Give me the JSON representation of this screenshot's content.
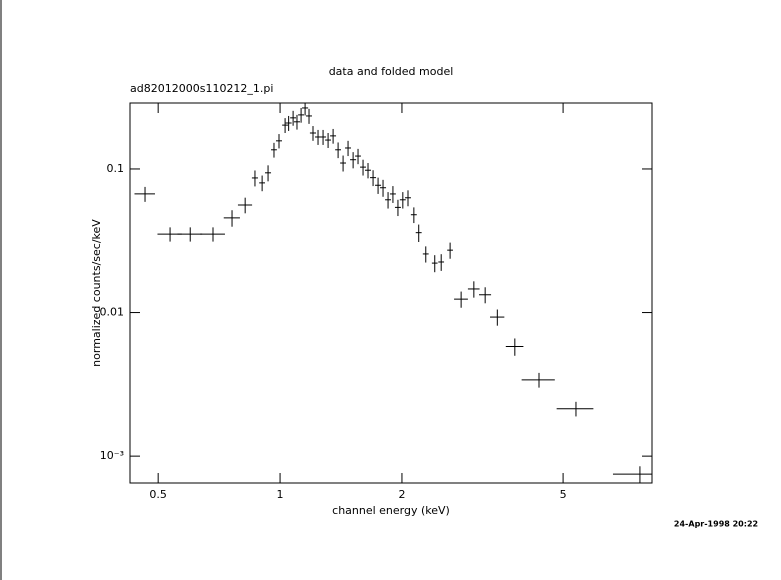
{
  "chart_data": {
    "type": "scatter",
    "title": "data and folded model",
    "subtitle": "ad82012000s110212_1.pi",
    "x_label": "channel energy (keV)",
    "y_label": "normalized counts/sec/keV",
    "timestamp": "24-Apr-1998 20:22",
    "log_x": true,
    "log_y": true,
    "color": "#000000",
    "xlim": [
      0.426,
      8.29
    ],
    "ylim": [
      0.00065,
      0.288
    ],
    "xticks": [
      0.5,
      1,
      2,
      5
    ],
    "yticks": [
      0.1,
      0.01,
      {
        "value": 0.001,
        "label": "10⁻³"
      }
    ],
    "x": [
      0.464,
      0.535,
      0.6,
      0.683,
      0.761,
      0.82,
      0.867,
      0.903,
      0.934,
      0.966,
      0.994,
      1.029,
      1.05,
      1.077,
      1.101,
      1.127,
      1.153,
      1.179,
      1.206,
      1.241,
      1.277,
      1.314,
      1.352,
      1.391,
      1.431,
      1.472,
      1.515,
      1.558,
      1.603,
      1.649,
      1.697,
      1.746,
      1.796,
      1.848,
      1.9,
      1.955,
      2.01,
      2.07,
      2.14,
      2.2,
      2.29,
      2.41,
      2.5,
      2.63,
      2.8,
      3.01,
      3.21,
      3.44,
      3.8,
      4.36,
      5.38,
      7.74
    ],
    "xerr": [
      0.027,
      0.037,
      0.042,
      0.048,
      0.035,
      0.033,
      0.015,
      0.015,
      0.016,
      0.016,
      0.017,
      0.017,
      0.018,
      0.018,
      0.019,
      0.019,
      0.02,
      0.02,
      0.021,
      0.021,
      0.022,
      0.022,
      0.023,
      0.023,
      0.024,
      0.025,
      0.026,
      0.026,
      0.027,
      0.028,
      0.029,
      0.03,
      0.031,
      0.031,
      0.032,
      0.033,
      0.034,
      0.035,
      0.036,
      0.037,
      0.038,
      0.039,
      0.041,
      0.043,
      0.11,
      0.1,
      0.11,
      0.14,
      0.19,
      0.41,
      0.56,
      1.1
    ],
    "values": [
      0.067,
      0.0352,
      0.0352,
      0.0352,
      0.0456,
      0.0561,
      0.0866,
      0.08,
      0.094,
      0.136,
      0.157,
      0.202,
      0.209,
      0.227,
      0.213,
      0.238,
      0.266,
      0.234,
      0.178,
      0.167,
      0.167,
      0.159,
      0.17,
      0.136,
      0.11,
      0.14,
      0.116,
      0.123,
      0.103,
      0.098,
      0.087,
      0.077,
      0.074,
      0.061,
      0.067,
      0.054,
      0.061,
      0.063,
      0.048,
      0.036,
      0.0256,
      0.0221,
      0.0225,
      0.0272,
      0.0124,
      0.0146,
      0.0133,
      0.0093,
      0.0058,
      0.0034,
      0.00214,
      0.00075
    ],
    "yerr": [
      0.008,
      0.004,
      0.004,
      0.004,
      0.006,
      0.007,
      0.011,
      0.01,
      0.012,
      0.016,
      0.018,
      0.024,
      0.025,
      0.027,
      0.025,
      0.028,
      0.03,
      0.028,
      0.021,
      0.02,
      0.02,
      0.019,
      0.02,
      0.017,
      0.014,
      0.017,
      0.015,
      0.015,
      0.013,
      0.012,
      0.011,
      0.01,
      0.01,
      0.008,
      0.009,
      0.007,
      0.008,
      0.008,
      0.006,
      0.005,
      0.0033,
      0.003,
      0.003,
      0.0035,
      0.0016,
      0.0019,
      0.0017,
      0.0012,
      0.0008,
      0.0004,
      0.00025,
      0.0001
    ]
  }
}
